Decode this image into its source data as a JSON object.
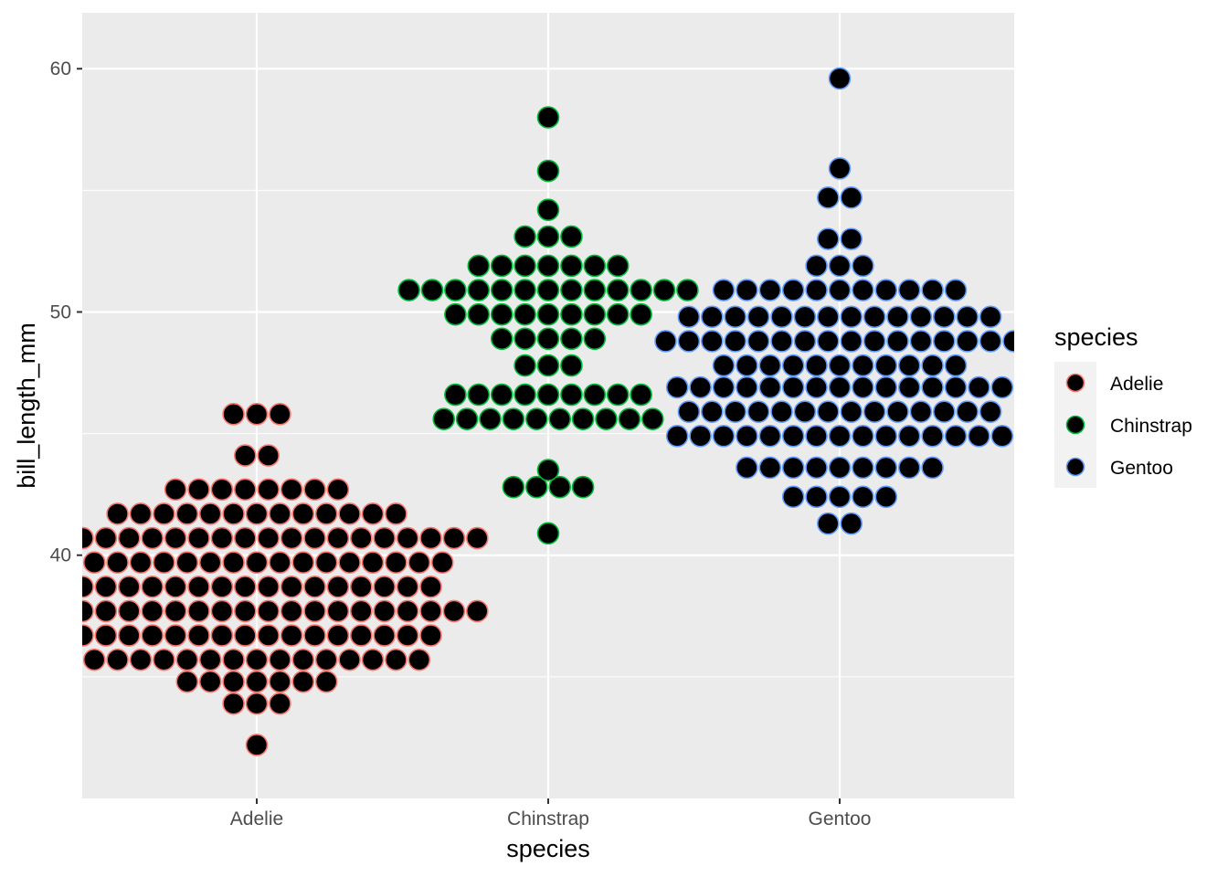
{
  "chart_data": {
    "type": "dotplot",
    "xlabel": "species",
    "ylabel": "bill_length_mm",
    "categories": [
      "Adelie",
      "Chinstrap",
      "Gentoo"
    ],
    "ylim": [
      30.0,
      62.3
    ],
    "yticks": [
      40,
      50,
      60
    ],
    "grid": true,
    "legend": {
      "title": "species",
      "position": "right",
      "entries": [
        {
          "label": "Adelie",
          "color": "#F8766D"
        },
        {
          "label": "Chinstrap",
          "color": "#00BA38"
        },
        {
          "label": "Gentoo",
          "color": "#619CFF"
        }
      ]
    },
    "dot_fill": "#000000",
    "bins": [
      {
        "category": "Adelie",
        "y": 32.2,
        "count": 1
      },
      {
        "category": "Adelie",
        "y": 33.9,
        "count": 3
      },
      {
        "category": "Adelie",
        "y": 34.8,
        "count": 7
      },
      {
        "category": "Adelie",
        "y": 35.7,
        "count": 15
      },
      {
        "category": "Adelie",
        "y": 36.7,
        "count": 16
      },
      {
        "category": "Adelie",
        "y": 37.7,
        "count": 20
      },
      {
        "category": "Adelie",
        "y": 38.7,
        "count": 16
      },
      {
        "category": "Adelie",
        "y": 39.7,
        "count": 17
      },
      {
        "category": "Adelie",
        "y": 40.7,
        "count": 20
      },
      {
        "category": "Adelie",
        "y": 41.7,
        "count": 13
      },
      {
        "category": "Adelie",
        "y": 42.7,
        "count": 8
      },
      {
        "category": "Adelie",
        "y": 44.1,
        "count": 2
      },
      {
        "category": "Adelie",
        "y": 45.8,
        "count": 3
      },
      {
        "category": "Chinstrap",
        "y": 40.9,
        "count": 1
      },
      {
        "category": "Chinstrap",
        "y": 42.8,
        "count": 4
      },
      {
        "category": "Chinstrap",
        "y": 43.5,
        "count": 1
      },
      {
        "category": "Chinstrap",
        "y": 45.6,
        "count": 10
      },
      {
        "category": "Chinstrap",
        "y": 46.6,
        "count": 9
      },
      {
        "category": "Chinstrap",
        "y": 47.8,
        "count": 3
      },
      {
        "category": "Chinstrap",
        "y": 48.9,
        "count": 5
      },
      {
        "category": "Chinstrap",
        "y": 49.9,
        "count": 9
      },
      {
        "category": "Chinstrap",
        "y": 50.9,
        "count": 13
      },
      {
        "category": "Chinstrap",
        "y": 51.9,
        "count": 7
      },
      {
        "category": "Chinstrap",
        "y": 53.1,
        "count": 3
      },
      {
        "category": "Chinstrap",
        "y": 54.2,
        "count": 1
      },
      {
        "category": "Chinstrap",
        "y": 55.8,
        "count": 1
      },
      {
        "category": "Chinstrap",
        "y": 58.0,
        "count": 1
      },
      {
        "category": "Gentoo",
        "y": 41.3,
        "count": 2
      },
      {
        "category": "Gentoo",
        "y": 42.4,
        "count": 5
      },
      {
        "category": "Gentoo",
        "y": 43.6,
        "count": 9
      },
      {
        "category": "Gentoo",
        "y": 44.9,
        "count": 15
      },
      {
        "category": "Gentoo",
        "y": 45.9,
        "count": 14
      },
      {
        "category": "Gentoo",
        "y": 46.9,
        "count": 15
      },
      {
        "category": "Gentoo",
        "y": 47.8,
        "count": 11
      },
      {
        "category": "Gentoo",
        "y": 48.8,
        "count": 16
      },
      {
        "category": "Gentoo",
        "y": 49.8,
        "count": 14
      },
      {
        "category": "Gentoo",
        "y": 50.9,
        "count": 11
      },
      {
        "category": "Gentoo",
        "y": 51.9,
        "count": 3
      },
      {
        "category": "Gentoo",
        "y": 53.0,
        "count": 2
      },
      {
        "category": "Gentoo",
        "y": 54.7,
        "count": 2
      },
      {
        "category": "Gentoo",
        "y": 55.9,
        "count": 1
      },
      {
        "category": "Gentoo",
        "y": 59.6,
        "count": 1
      }
    ]
  }
}
